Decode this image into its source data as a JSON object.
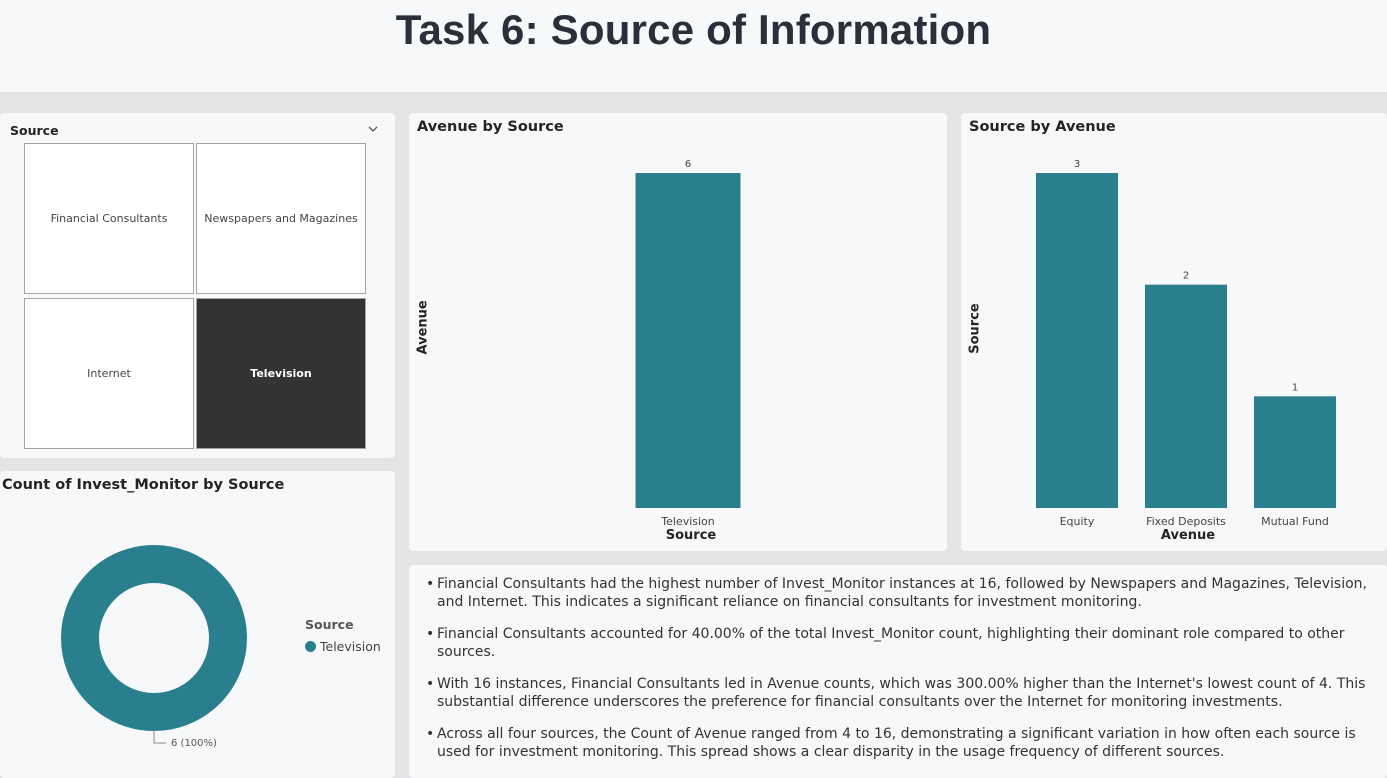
{
  "page": {
    "title": "Task 6: Source of Information"
  },
  "slicer": {
    "title": "Source",
    "items": [
      {
        "label": "Financial Consultants",
        "selected": false
      },
      {
        "label": "Newspapers and Magazines",
        "selected": false
      },
      {
        "label": "Internet",
        "selected": false
      },
      {
        "label": "Television",
        "selected": true
      }
    ]
  },
  "colors": {
    "bar": "#2a7f8e",
    "selected_tile": "#333333",
    "background": "#f7f8fa"
  },
  "chart_data": [
    {
      "type": "bar",
      "title": "Avenue by Source",
      "xlabel": "Source",
      "ylabel": "Avenue",
      "categories": [
        "Television"
      ],
      "values": [
        6
      ],
      "ylim": [
        0,
        6
      ],
      "grid": false
    },
    {
      "type": "bar",
      "title": "Source by Avenue",
      "xlabel": "Avenue",
      "ylabel": "Source",
      "categories": [
        "Equity",
        "Fixed Deposits",
        "Mutual Fund"
      ],
      "values": [
        3,
        2,
        1
      ],
      "ylim": [
        0,
        3
      ],
      "grid": false
    },
    {
      "type": "pie",
      "title": "Count of Invest_Monitor by Source",
      "legend_title": "Source",
      "legend_position": "right",
      "categories": [
        "Television"
      ],
      "values": [
        6
      ],
      "slice_label": "6 (100%)"
    }
  ],
  "insights": [
    "Financial Consultants had the highest number of Invest_Monitor instances at 16, followed by Newspapers and Magazines, Television, and Internet. This indicates a significant reliance on financial consultants for investment monitoring.",
    "Financial Consultants accounted for 40.00% of the total Invest_Monitor count, highlighting their dominant role compared to other sources.",
    " With 16 instances, Financial Consultants led in Avenue counts, which was 300.00% higher than the Internet's lowest count of 4. This substantial difference underscores the preference for financial consultants over the Internet for monitoring investments.",
    "Across all four sources, the Count of Avenue ranged from 4 to 16, demonstrating a significant variation in how often each source is used for investment monitoring. This spread shows a clear disparity in the usage frequency of different sources."
  ],
  "bullet_char": "•"
}
